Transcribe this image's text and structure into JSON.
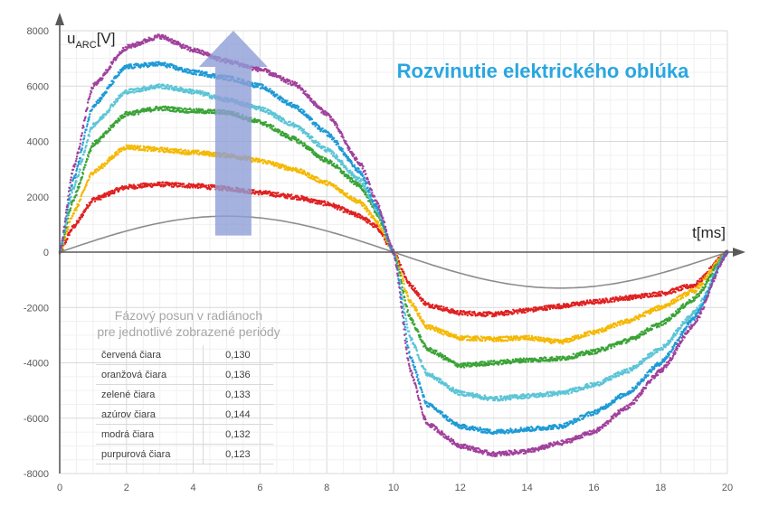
{
  "chart_data": {
    "type": "scatter",
    "title": "Rozvinutie elektrického oblúka",
    "xlabel": "t[ms]",
    "ylabel_main": "u",
    "ylabel_sub": "ARC",
    "ylabel_unit": "[V]",
    "xlim": [
      0,
      20
    ],
    "ylim": [
      -8000,
      8000
    ],
    "x_ticks": [
      "0",
      "2",
      "4",
      "6",
      "8",
      "10",
      "12",
      "14",
      "16",
      "18",
      "20"
    ],
    "y_ticks": [
      "8000",
      "6000",
      "4000",
      "2000",
      "0",
      "-2000",
      "-4000",
      "-6000",
      "-8000"
    ],
    "grid": true,
    "reference_wave": {
      "color": "#8c8c8c",
      "amplitude": 1300,
      "period_ms": 20
    },
    "series": [
      {
        "color": "#e02020",
        "pos": [
          [
            0,
            0
          ],
          [
            0.4,
            900
          ],
          [
            1,
            1900
          ],
          [
            2,
            2350
          ],
          [
            3,
            2450
          ],
          [
            4,
            2400
          ],
          [
            5,
            2300
          ],
          [
            6,
            2150
          ],
          [
            7,
            2000
          ],
          [
            8,
            1750
          ],
          [
            9,
            1300
          ],
          [
            9.5,
            900
          ],
          [
            10,
            0
          ]
        ],
        "neg": [
          [
            10,
            0
          ],
          [
            10.5,
            -1200
          ],
          [
            11,
            -1900
          ],
          [
            12,
            -2200
          ],
          [
            13,
            -2250
          ],
          [
            14,
            -2100
          ],
          [
            15,
            -1950
          ],
          [
            16,
            -1800
          ],
          [
            17,
            -1650
          ],
          [
            18,
            -1500
          ],
          [
            19,
            -1200
          ],
          [
            20,
            0
          ]
        ]
      },
      {
        "color": "#f5b800",
        "pos": [
          [
            0,
            0
          ],
          [
            0.4,
            1400
          ],
          [
            1,
            2900
          ],
          [
            2,
            3800
          ],
          [
            3,
            3700
          ],
          [
            4,
            3600
          ],
          [
            5,
            3500
          ],
          [
            6,
            3300
          ],
          [
            7,
            3000
          ],
          [
            8,
            2500
          ],
          [
            9,
            1800
          ],
          [
            9.5,
            1100
          ],
          [
            10,
            0
          ]
        ],
        "neg": [
          [
            10,
            0
          ],
          [
            10.5,
            -1800
          ],
          [
            11,
            -2700
          ],
          [
            12,
            -3100
          ],
          [
            13,
            -3150
          ],
          [
            14,
            -3100
          ],
          [
            15,
            -3250
          ],
          [
            16,
            -2900
          ],
          [
            17,
            -2500
          ],
          [
            18,
            -2000
          ],
          [
            19,
            -1400
          ],
          [
            20,
            0
          ]
        ]
      },
      {
        "color": "#3aa336",
        "pos": [
          [
            0,
            0
          ],
          [
            0.4,
            1900
          ],
          [
            1,
            3900
          ],
          [
            2,
            5000
          ],
          [
            3,
            5200
          ],
          [
            4,
            5100
          ],
          [
            5,
            5050
          ],
          [
            6,
            4700
          ],
          [
            7,
            4100
          ],
          [
            8,
            3300
          ],
          [
            9,
            2400
          ],
          [
            9.5,
            1400
          ],
          [
            10,
            0
          ]
        ],
        "neg": [
          [
            10,
            0
          ],
          [
            10.5,
            -2400
          ],
          [
            11,
            -3500
          ],
          [
            12,
            -4100
          ],
          [
            13,
            -4000
          ],
          [
            14,
            -3900
          ],
          [
            15,
            -3850
          ],
          [
            16,
            -3600
          ],
          [
            17,
            -3200
          ],
          [
            18,
            -2600
          ],
          [
            19,
            -1700
          ],
          [
            20,
            0
          ]
        ]
      },
      {
        "color": "#5bc5d6",
        "pos": [
          [
            0,
            0
          ],
          [
            0.4,
            2300
          ],
          [
            1,
            4600
          ],
          [
            2,
            5800
          ],
          [
            3,
            6000
          ],
          [
            4,
            5800
          ],
          [
            5,
            5500
          ],
          [
            6,
            5200
          ],
          [
            7,
            4600
          ],
          [
            8,
            3700
          ],
          [
            9,
            2600
          ],
          [
            9.5,
            1500
          ],
          [
            10,
            0
          ]
        ],
        "neg": [
          [
            10,
            0
          ],
          [
            10.5,
            -3100
          ],
          [
            11,
            -4400
          ],
          [
            12,
            -5100
          ],
          [
            13,
            -5300
          ],
          [
            14,
            -5200
          ],
          [
            15,
            -5100
          ],
          [
            16,
            -4800
          ],
          [
            17,
            -4300
          ],
          [
            18,
            -3500
          ],
          [
            19,
            -2200
          ],
          [
            20,
            0
          ]
        ]
      },
      {
        "color": "#1e9ad6",
        "pos": [
          [
            0,
            0
          ],
          [
            0.4,
            2600
          ],
          [
            1,
            5300
          ],
          [
            2,
            6700
          ],
          [
            3,
            6800
          ],
          [
            4,
            6500
          ],
          [
            5,
            6300
          ],
          [
            6,
            6000
          ],
          [
            7,
            5300
          ],
          [
            8,
            4300
          ],
          [
            9,
            2900
          ],
          [
            9.5,
            1600
          ],
          [
            10,
            0
          ]
        ],
        "neg": [
          [
            10,
            0
          ],
          [
            10.5,
            -3800
          ],
          [
            11,
            -5500
          ],
          [
            12,
            -6300
          ],
          [
            13,
            -6500
          ],
          [
            14,
            -6400
          ],
          [
            15,
            -6300
          ],
          [
            16,
            -5800
          ],
          [
            17,
            -5100
          ],
          [
            18,
            -4000
          ],
          [
            19,
            -2400
          ],
          [
            20,
            0
          ]
        ]
      },
      {
        "color": "#a1409c",
        "pos": [
          [
            0,
            0
          ],
          [
            0.4,
            3000
          ],
          [
            1,
            6000
          ],
          [
            2,
            7400
          ],
          [
            3,
            7800
          ],
          [
            4,
            7300
          ],
          [
            5,
            6900
          ],
          [
            6,
            6600
          ],
          [
            7,
            6100
          ],
          [
            8,
            5000
          ],
          [
            9,
            3200
          ],
          [
            9.5,
            1800
          ],
          [
            10,
            0
          ]
        ],
        "neg": [
          [
            10,
            0
          ],
          [
            10.5,
            -4300
          ],
          [
            11,
            -6200
          ],
          [
            12,
            -7000
          ],
          [
            13,
            -7300
          ],
          [
            14,
            -7200
          ],
          [
            15,
            -6900
          ],
          [
            16,
            -6500
          ],
          [
            17,
            -5600
          ],
          [
            18,
            -4300
          ],
          [
            19,
            -2600
          ],
          [
            20,
            0
          ]
        ]
      }
    ],
    "arrow": {
      "from_x": 5.2,
      "from_y": 600,
      "to_x": 5.2,
      "to_y": 8000,
      "color": "#8f9dd6"
    }
  },
  "phase_table": {
    "title_line1": "Fázový posun v radiánoch",
    "title_line2": "pre jednotlivé zobrazené periódy",
    "rows": [
      {
        "label": "červená čiara",
        "value": "0,130"
      },
      {
        "label": "oranžová čiara",
        "value": "0,136"
      },
      {
        "label": "zelené čiara",
        "value": "0,133"
      },
      {
        "label": "azúrov čiara",
        "value": "0,144"
      },
      {
        "label": "modrá čiara",
        "value": "0,132"
      },
      {
        "label": "purpurová čiara",
        "value": "0,123"
      }
    ]
  }
}
